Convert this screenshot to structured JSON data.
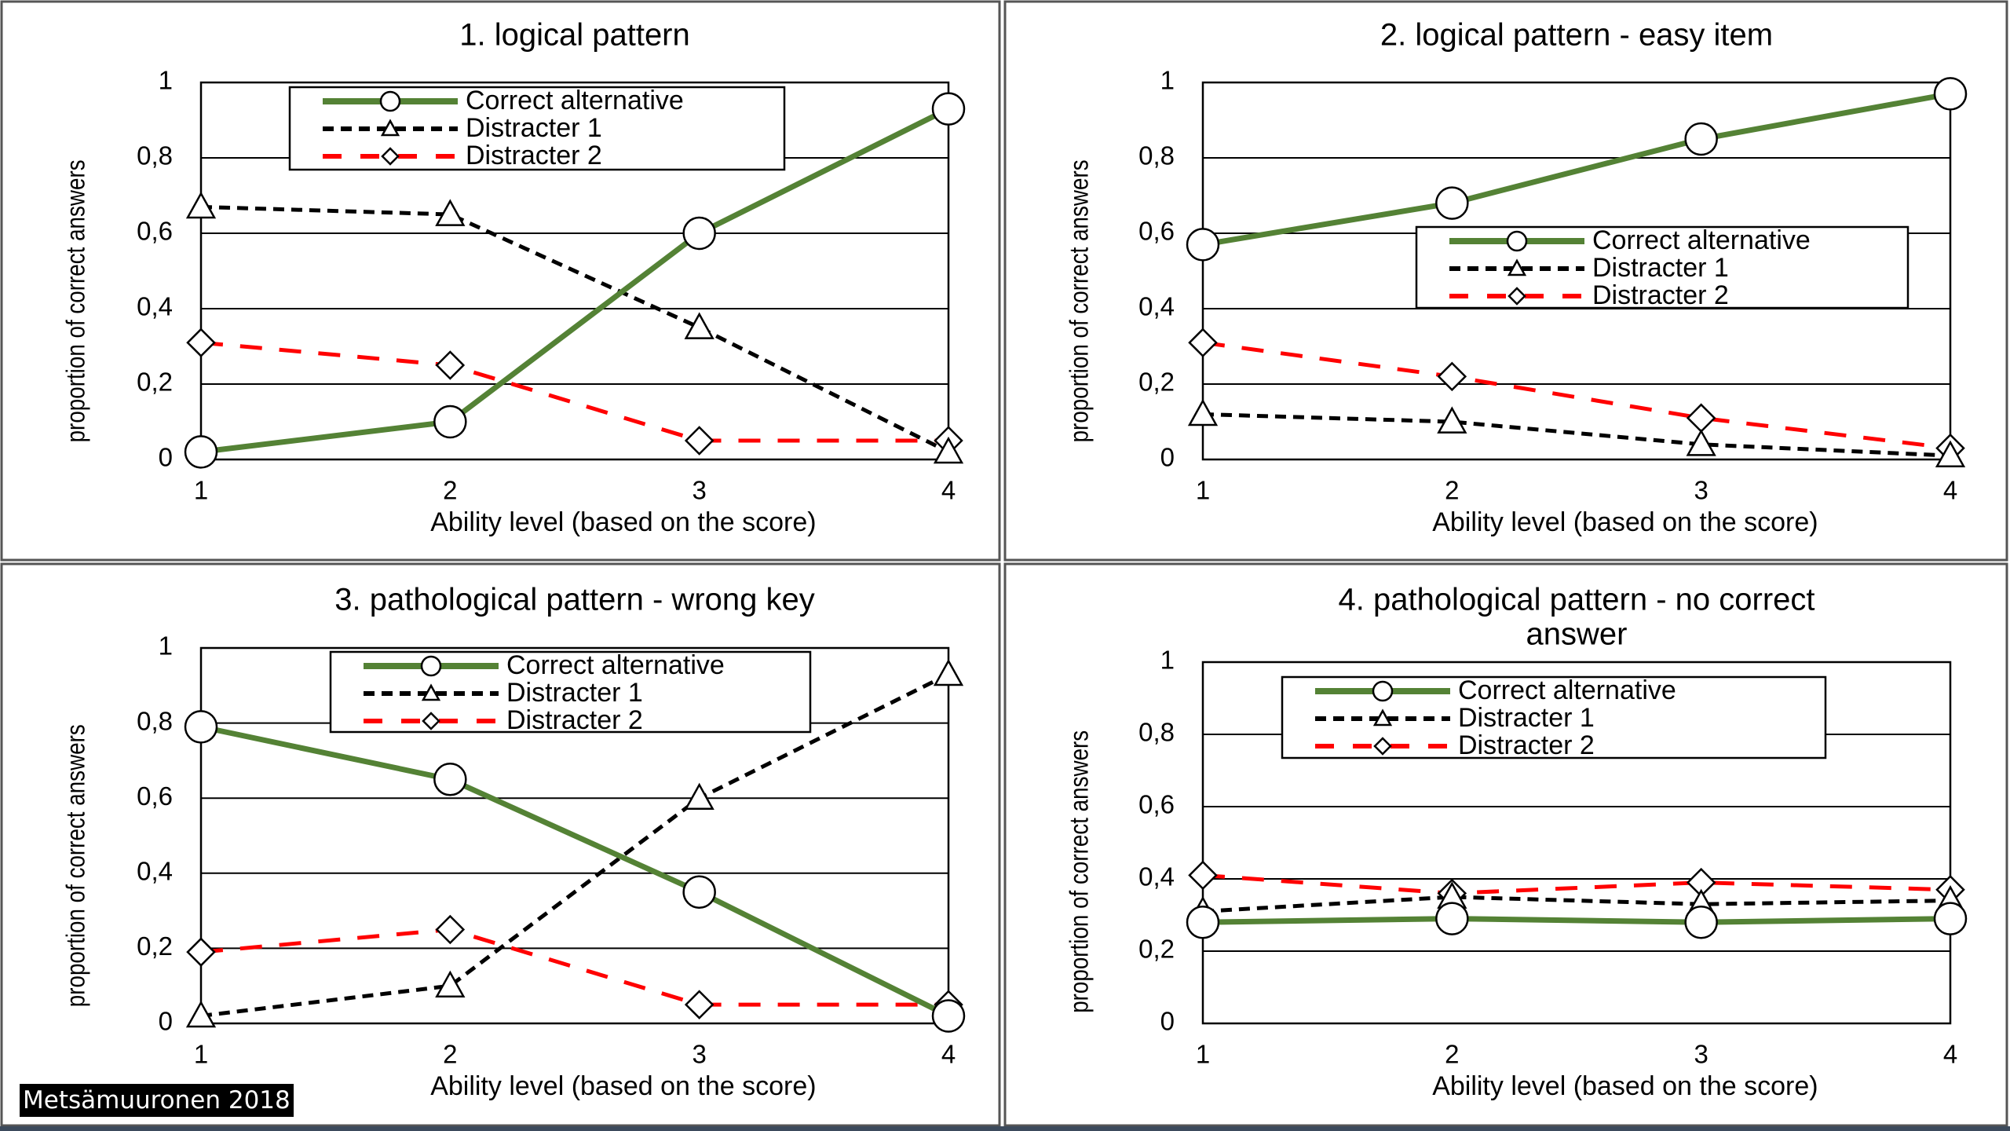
{
  "credit": "Metsämuuronen 2018",
  "colors": {
    "correct": "#548235",
    "distracter1": "#000000",
    "distracter2": "#ff0000",
    "grid": "#000000"
  },
  "chart_data": [
    {
      "type": "line",
      "title": "1. logical pattern",
      "xlabel": "Ability level (based on the score)",
      "ylabel": "proportion of correct answers",
      "x": [
        1,
        2,
        3,
        4
      ],
      "xticks": [
        "1",
        "2",
        "3",
        "4"
      ],
      "yticks": [
        "0",
        "0,2",
        "0,4",
        "0,6",
        "0,8",
        "1"
      ],
      "ylim": [
        0,
        1
      ],
      "grid": true,
      "legend": "top-center",
      "series": [
        {
          "name": "Correct alternative",
          "marker": "circle",
          "values": [
            0.02,
            0.1,
            0.6,
            0.93
          ]
        },
        {
          "name": "Distracter 1",
          "marker": "triangle",
          "values": [
            0.67,
            0.65,
            0.35,
            0.02
          ]
        },
        {
          "name": "Distracter 2",
          "marker": "diamond",
          "values": [
            0.31,
            0.25,
            0.05,
            0.05
          ]
        }
      ]
    },
    {
      "type": "line",
      "title": "2. logical pattern - easy item",
      "xlabel": "Ability level (based on the score)",
      "ylabel": "proportion of correct answers",
      "x": [
        1,
        2,
        3,
        4
      ],
      "xticks": [
        "1",
        "2",
        "3",
        "4"
      ],
      "yticks": [
        "0",
        "0,2",
        "0,4",
        "0,6",
        "0,8",
        "1"
      ],
      "ylim": [
        0,
        1
      ],
      "grid": true,
      "legend": "center-right",
      "series": [
        {
          "name": "Correct alternative",
          "marker": "circle",
          "values": [
            0.57,
            0.68,
            0.85,
            0.97
          ]
        },
        {
          "name": "Distracter 1",
          "marker": "triangle",
          "values": [
            0.12,
            0.1,
            0.04,
            0.01
          ]
        },
        {
          "name": "Distracter 2",
          "marker": "diamond",
          "values": [
            0.31,
            0.22,
            0.11,
            0.03
          ]
        }
      ]
    },
    {
      "type": "line",
      "title": "3. pathological pattern - wrong key",
      "xlabel": "Ability level (based on the score)",
      "ylabel": "proportion of correct answers",
      "x": [
        1,
        2,
        3,
        4
      ],
      "xticks": [
        "1",
        "2",
        "3",
        "4"
      ],
      "yticks": [
        "0",
        "0,2",
        "0,4",
        "0,6",
        "0,8",
        "1"
      ],
      "ylim": [
        0,
        1
      ],
      "grid": true,
      "legend": "top-center",
      "series": [
        {
          "name": "Correct alternative",
          "marker": "circle",
          "values": [
            0.79,
            0.65,
            0.35,
            0.02
          ]
        },
        {
          "name": "Distracter 1",
          "marker": "triangle",
          "values": [
            0.02,
            0.1,
            0.6,
            0.93
          ]
        },
        {
          "name": "Distracter 2",
          "marker": "diamond",
          "values": [
            0.19,
            0.25,
            0.05,
            0.05
          ]
        }
      ]
    },
    {
      "type": "line",
      "title": "4. pathological pattern - no correct answer",
      "xlabel": "Ability level (based on the score)",
      "ylabel": "proportion of correct answers",
      "x": [
        1,
        2,
        3,
        4
      ],
      "xticks": [
        "1",
        "2",
        "3",
        "4"
      ],
      "yticks": [
        "0",
        "0,2",
        "0,4",
        "0,6",
        "0,8",
        "1"
      ],
      "ylim": [
        0,
        1
      ],
      "grid": true,
      "legend": "top-center",
      "series": [
        {
          "name": "Correct alternative",
          "marker": "circle",
          "values": [
            0.28,
            0.29,
            0.28,
            0.29
          ]
        },
        {
          "name": "Distracter 1",
          "marker": "triangle",
          "values": [
            0.31,
            0.35,
            0.33,
            0.34
          ]
        },
        {
          "name": "Distracter 2",
          "marker": "diamond",
          "values": [
            0.41,
            0.36,
            0.39,
            0.37
          ]
        }
      ]
    }
  ]
}
